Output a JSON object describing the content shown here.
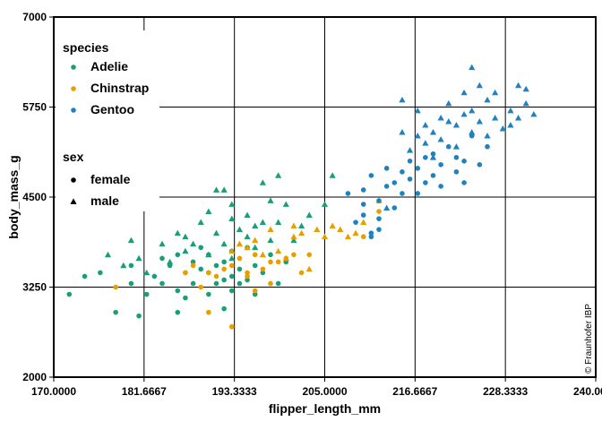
{
  "chart_data": {
    "type": "scatter",
    "title": "",
    "xlabel": "flipper_length_mm",
    "ylabel": "body_mass_g",
    "xlim": [
      170,
      240
    ],
    "ylim": [
      2000,
      7000
    ],
    "x_ticks": [
      "170.0000",
      "181.6667",
      "193.3333",
      "205.0000",
      "216.6667",
      "228.3333",
      "240.0000"
    ],
    "y_ticks": [
      "2000",
      "3250",
      "4500",
      "5750",
      "7000"
    ],
    "grid": true,
    "legend_position": "top-left",
    "credit": "© Fraunhofer IBP",
    "legend": {
      "color_title": "species",
      "shape_title": "sex",
      "species": [
        {
          "name": "Adelie",
          "color": "#1b9e77"
        },
        {
          "name": "Chinstrap",
          "color": "#e69f00"
        },
        {
          "name": "Gentoo",
          "color": "#1f82c0"
        }
      ],
      "sex": [
        {
          "name": "female",
          "shape": "circle"
        },
        {
          "name": "male",
          "shape": "triangle"
        }
      ]
    },
    "series": [
      {
        "species": "Adelie",
        "sex": "female",
        "color": "#1b9e77",
        "shape": "circle",
        "points": [
          [
            172,
            3150
          ],
          [
            174,
            3400
          ],
          [
            176,
            3450
          ],
          [
            178,
            2900
          ],
          [
            180,
            3300
          ],
          [
            180,
            3550
          ],
          [
            181,
            2850
          ],
          [
            182,
            3150
          ],
          [
            183,
            3400
          ],
          [
            184,
            3650
          ],
          [
            184,
            3300
          ],
          [
            185,
            3550
          ],
          [
            186,
            2900
          ],
          [
            186,
            3200
          ],
          [
            186,
            3700
          ],
          [
            187,
            3450
          ],
          [
            187,
            3100
          ],
          [
            188,
            3600
          ],
          [
            188,
            3300
          ],
          [
            189,
            3800
          ],
          [
            189,
            3500
          ],
          [
            190,
            3150
          ],
          [
            190,
            3450
          ],
          [
            190,
            3700
          ],
          [
            191,
            3300
          ],
          [
            191,
            3550
          ],
          [
            192,
            2950
          ],
          [
            192,
            3350
          ],
          [
            192,
            3600
          ],
          [
            193,
            3400
          ],
          [
            193,
            3200
          ],
          [
            193,
            3750
          ],
          [
            194,
            3500
          ],
          [
            194,
            3300
          ],
          [
            195,
            3350
          ],
          [
            195,
            3800
          ],
          [
            196,
            3550
          ],
          [
            196,
            3150
          ],
          [
            197,
            3450
          ],
          [
            198,
            3700
          ],
          [
            199,
            3300
          ],
          [
            200,
            3600
          ]
        ]
      },
      {
        "species": "Adelie",
        "sex": "male",
        "color": "#1b9e77",
        "shape": "triangle",
        "points": [
          [
            177,
            3700
          ],
          [
            179,
            3550
          ],
          [
            180,
            3900
          ],
          [
            181,
            3650
          ],
          [
            182,
            3450
          ],
          [
            183,
            4650
          ],
          [
            184,
            3850
          ],
          [
            185,
            3600
          ],
          [
            186,
            4000
          ],
          [
            187,
            3750
          ],
          [
            187,
            3950
          ],
          [
            188,
            3850
          ],
          [
            189,
            4150
          ],
          [
            190,
            4300
          ],
          [
            190,
            3700
          ],
          [
            191,
            4000
          ],
          [
            191,
            4600
          ],
          [
            192,
            4600
          ],
          [
            192,
            3850
          ],
          [
            193,
            4200
          ],
          [
            193,
            4400
          ],
          [
            193,
            3650
          ],
          [
            194,
            4050
          ],
          [
            195,
            4250
          ],
          [
            195,
            3950
          ],
          [
            196,
            3800
          ],
          [
            196,
            4100
          ],
          [
            197,
            4150
          ],
          [
            197,
            4700
          ],
          [
            198,
            4450
          ],
          [
            198,
            3900
          ],
          [
            199,
            4150
          ],
          [
            199,
            4800
          ],
          [
            200,
            4400
          ],
          [
            201,
            3900
          ],
          [
            202,
            4100
          ],
          [
            203,
            4250
          ],
          [
            205,
            4400
          ],
          [
            206,
            4800
          ]
        ]
      },
      {
        "species": "Chinstrap",
        "sex": "female",
        "color": "#e69f00",
        "shape": "circle",
        "points": [
          [
            178,
            3250
          ],
          [
            187,
            3450
          ],
          [
            188,
            3550
          ],
          [
            189,
            3250
          ],
          [
            190,
            2900
          ],
          [
            190,
            3450
          ],
          [
            191,
            3400
          ],
          [
            192,
            3500
          ],
          [
            193,
            2700
          ],
          [
            193,
            3550
          ],
          [
            194,
            3650
          ],
          [
            195,
            3450
          ],
          [
            195,
            3400
          ],
          [
            196,
            3700
          ],
          [
            196,
            3200
          ],
          [
            197,
            3500
          ],
          [
            198,
            3600
          ],
          [
            198,
            3300
          ],
          [
            199,
            3600
          ],
          [
            200,
            3650
          ],
          [
            201,
            3700
          ],
          [
            202,
            3450
          ],
          [
            203,
            3700
          ],
          [
            210,
            3950
          ],
          [
            212,
            4300
          ]
        ]
      },
      {
        "species": "Chinstrap",
        "sex": "male",
        "color": "#e69f00",
        "shape": "triangle",
        "points": [
          [
            193,
            3750
          ],
          [
            194,
            3850
          ],
          [
            195,
            3800
          ],
          [
            196,
            3900
          ],
          [
            197,
            3700
          ],
          [
            198,
            4050
          ],
          [
            199,
            3750
          ],
          [
            200,
            3650
          ],
          [
            201,
            3950
          ],
          [
            201,
            4100
          ],
          [
            202,
            4000
          ],
          [
            203,
            3500
          ],
          [
            204,
            4050
          ],
          [
            205,
            3950
          ],
          [
            206,
            4100
          ],
          [
            207,
            4050
          ],
          [
            208,
            3950
          ],
          [
            209,
            4000
          ],
          [
            210,
            4150
          ],
          [
            212,
            4450
          ]
        ]
      },
      {
        "species": "Gentoo",
        "sex": "female",
        "color": "#1f82c0",
        "shape": "circle",
        "points": [
          [
            208,
            4550
          ],
          [
            209,
            4150
          ],
          [
            210,
            4250
          ],
          [
            210,
            4600
          ],
          [
            211,
            4000
          ],
          [
            211,
            4800
          ],
          [
            212,
            4200
          ],
          [
            212,
            4450
          ],
          [
            213,
            4650
          ],
          [
            213,
            4900
          ],
          [
            214,
            4350
          ],
          [
            214,
            4700
          ],
          [
            215,
            4550
          ],
          [
            215,
            4850
          ],
          [
            216,
            4750
          ],
          [
            216,
            5000
          ],
          [
            217,
            4550
          ],
          [
            217,
            4900
          ],
          [
            218,
            5050
          ],
          [
            218,
            4700
          ],
          [
            219,
            4800
          ],
          [
            219,
            5100
          ],
          [
            220,
            4650
          ],
          [
            220,
            4950
          ],
          [
            221,
            5200
          ],
          [
            222,
            4850
          ],
          [
            222,
            5050
          ],
          [
            223,
            4700
          ],
          [
            223,
            5000
          ],
          [
            224,
            5350
          ],
          [
            225,
            4950
          ],
          [
            226,
            5200
          ],
          [
            210,
            4400
          ],
          [
            211,
            3950
          ],
          [
            212,
            4050
          ]
        ]
      },
      {
        "species": "Gentoo",
        "sex": "male",
        "color": "#1f82c0",
        "shape": "triangle",
        "points": [
          [
            213,
            4350
          ],
          [
            215,
            5400
          ],
          [
            215,
            5850
          ],
          [
            216,
            5150
          ],
          [
            217,
            5350
          ],
          [
            217,
            5700
          ],
          [
            218,
            5500
          ],
          [
            218,
            5250
          ],
          [
            219,
            5400
          ],
          [
            219,
            5050
          ],
          [
            220,
            5600
          ],
          [
            220,
            5300
          ],
          [
            221,
            5550
          ],
          [
            221,
            5800
          ],
          [
            222,
            5500
          ],
          [
            222,
            5200
          ],
          [
            223,
            5650
          ],
          [
            223,
            5950
          ],
          [
            224,
            5400
          ],
          [
            224,
            5700
          ],
          [
            224,
            6300
          ],
          [
            225,
            5550
          ],
          [
            225,
            6050
          ],
          [
            226,
            5350
          ],
          [
            226,
            5850
          ],
          [
            227,
            5600
          ],
          [
            227,
            5950
          ],
          [
            228,
            5450
          ],
          [
            229,
            5700
          ],
          [
            229,
            5500
          ],
          [
            230,
            5600
          ],
          [
            231,
            6000
          ],
          [
            231,
            5800
          ],
          [
            232,
            5650
          ],
          [
            230,
            6050
          ]
        ]
      }
    ]
  }
}
